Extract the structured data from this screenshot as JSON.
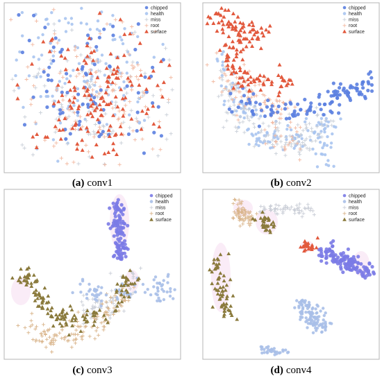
{
  "figure": {
    "panels": [
      {
        "id": "a",
        "letter": "(a)",
        "title": "conv1"
      },
      {
        "id": "b",
        "letter": "(b)",
        "title": "conv2"
      },
      {
        "id": "c",
        "letter": "(c)",
        "title": "conv3"
      },
      {
        "id": "d",
        "letter": "(d)",
        "title": "conv4"
      }
    ]
  },
  "chart_data": [
    {
      "type": "scatter",
      "panel": "(a) conv1",
      "grid": false,
      "axes_visible": false,
      "legend_placement": "top-right",
      "series": [
        {
          "name": "chipped",
          "marker": "circle",
          "color": "#5b7fe0"
        },
        {
          "name": "health",
          "marker": "circle",
          "color": "#a9c4ef"
        },
        {
          "name": "miss",
          "marker": "plus",
          "color": "#c9cfd8"
        },
        {
          "name": "root",
          "marker": "plus",
          "color": "#f2b9a1"
        },
        {
          "name": "surface",
          "marker": "triangle",
          "color": "#e2593d"
        }
      ]
    },
    {
      "type": "scatter",
      "panel": "(b) conv2",
      "grid": false,
      "axes_visible": false,
      "legend_placement": "top-right",
      "series": [
        {
          "name": "chipped",
          "marker": "circle",
          "color": "#5b7fe0"
        },
        {
          "name": "health",
          "marker": "circle",
          "color": "#a9c4ef"
        },
        {
          "name": "miss",
          "marker": "plus",
          "color": "#c9cfd8"
        },
        {
          "name": "root",
          "marker": "plus",
          "color": "#f2b9a1"
        },
        {
          "name": "surface",
          "marker": "triangle",
          "color": "#e2593d"
        }
      ]
    },
    {
      "type": "scatter",
      "panel": "(c) conv3",
      "grid": false,
      "axes_visible": false,
      "legend_placement": "top-right",
      "series": [
        {
          "name": "chipped",
          "marker": "circle",
          "color": "#7b7be6"
        },
        {
          "name": "health",
          "marker": "circle",
          "color": "#a9bfe8"
        },
        {
          "name": "miss",
          "marker": "plus",
          "color": "#c9cdd6"
        },
        {
          "name": "root",
          "marker": "plus",
          "color": "#d9b48a"
        },
        {
          "name": "surface",
          "marker": "triangle",
          "color": "#8a7a3c"
        }
      ]
    },
    {
      "type": "scatter",
      "panel": "(d) conv4",
      "grid": false,
      "axes_visible": false,
      "legend_placement": "top-right",
      "series": [
        {
          "name": "chipped",
          "marker": "circle",
          "color": "#7b7be6"
        },
        {
          "name": "health",
          "marker": "circle",
          "color": "#a9bfe8"
        },
        {
          "name": "miss",
          "marker": "plus",
          "color": "#c9cdd6"
        },
        {
          "name": "root",
          "marker": "plus",
          "color": "#d9b48a"
        },
        {
          "name": "surface",
          "marker": "triangle",
          "color": "#8a7a3c"
        }
      ]
    }
  ]
}
